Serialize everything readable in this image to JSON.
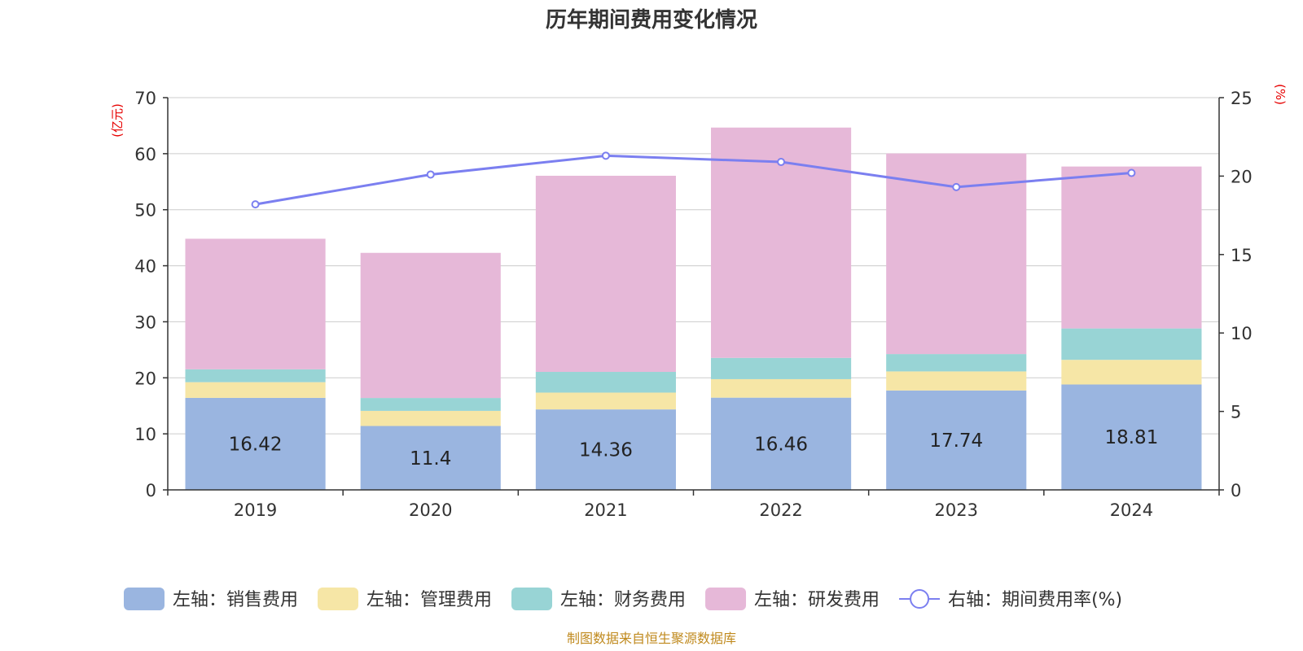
{
  "title": "历年期间费用变化情况",
  "source": "制图数据来自恒生聚源数据库",
  "chart_data": {
    "type": "bar",
    "stacked": true,
    "categories": [
      "2019",
      "2020",
      "2021",
      "2022",
      "2023",
      "2024"
    ],
    "series": [
      {
        "name": "左轴：销售费用",
        "axis": "left",
        "color": "#9ab5e0",
        "values": [
          16.42,
          11.4,
          14.36,
          16.46,
          17.74,
          18.81
        ],
        "show_labels": true
      },
      {
        "name": "左轴：管理费用",
        "axis": "left",
        "color": "#f6e6a6",
        "values": [
          2.8,
          2.7,
          3.0,
          3.3,
          3.4,
          4.4
        ]
      },
      {
        "name": "左轴：财务费用",
        "axis": "left",
        "color": "#98d4d5",
        "values": [
          2.3,
          2.3,
          3.7,
          3.8,
          3.1,
          5.6
        ]
      },
      {
        "name": "左轴：研发费用",
        "axis": "left",
        "color": "#e6b8d8",
        "values": [
          23.3,
          25.9,
          35.0,
          41.1,
          35.8,
          28.9
        ]
      }
    ],
    "line": {
      "name": "右轴：期间费用率(%)",
      "axis": "right",
      "color": "#7b7ff0",
      "values": [
        18.2,
        20.1,
        21.3,
        20.9,
        19.3,
        20.2
      ]
    },
    "left_axis": {
      "label": "(亿元)",
      "min": 0,
      "max": 70,
      "ticks": [
        0,
        10,
        20,
        30,
        40,
        50,
        60,
        70
      ]
    },
    "right_axis": {
      "label": "(%)",
      "min": 0,
      "max": 25,
      "ticks": [
        0,
        5,
        10,
        15,
        20,
        25
      ]
    },
    "legend_position": "bottom"
  }
}
